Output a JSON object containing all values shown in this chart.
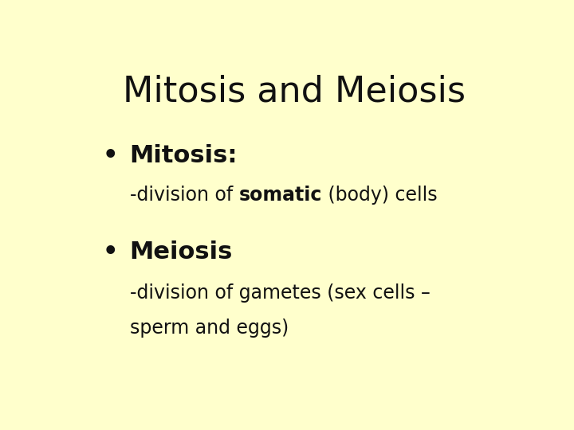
{
  "background_color": "#FFFFCC",
  "title": "Mitosis and Meiosis",
  "title_fontsize": 32,
  "title_color": "#111111",
  "bullet1_label": "Mitosis:",
  "bullet1_fontsize": 22,
  "sub1_normal1": "-division of ",
  "sub1_bold": "somatic",
  "sub1_normal2": " (body) cells",
  "sub1_fontsize": 17,
  "bullet2_label": "Meiosis",
  "bullet2_fontsize": 22,
  "sub2_line1": "-division of gametes (sex cells –",
  "sub2_line2": "sperm and eggs)",
  "sub2_fontsize": 17,
  "bullet_color": "#111111",
  "text_color": "#111111",
  "font_name": "Comic Sans MS"
}
